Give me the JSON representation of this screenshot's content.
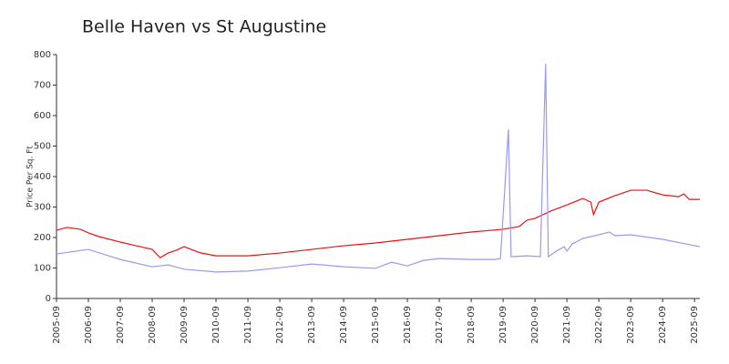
{
  "chart_data": {
    "type": "line",
    "title": "Belle Haven vs St Augustine",
    "y_label": "Price Per Sq. Ft",
    "xlim": [
      "2005-09",
      "2025-11"
    ],
    "xticks": [
      "2005-09",
      "2006-09",
      "2007-09",
      "2008-09",
      "2009-09",
      "2010-09",
      "2011-09",
      "2012-09",
      "2013-09",
      "2014-09",
      "2015-09",
      "2016-09",
      "2017-09",
      "2018-09",
      "2019-09",
      "2020-09",
      "2021-09",
      "2022-09",
      "2023-09",
      "2024-09",
      "2025-09"
    ],
    "ylim": [
      0,
      800
    ],
    "yticks": [
      0,
      100,
      200,
      300,
      400,
      500,
      600,
      700,
      800
    ],
    "grid": false,
    "series": [
      {
        "color": "#ee1111",
        "x": [
          "2005-09",
          "2006-01",
          "2006-06",
          "2006-09",
          "2007-01",
          "2007-09",
          "2008-03",
          "2008-09",
          "2008-12",
          "2009-03",
          "2009-06",
          "2009-09",
          "2010-03",
          "2010-09",
          "2011-09",
          "2012-09",
          "2013-09",
          "2014-09",
          "2015-09",
          "2016-09",
          "2017-09",
          "2018-09",
          "2019-09",
          "2020-03",
          "2020-06",
          "2020-09",
          "2021-03",
          "2021-09",
          "2022-03",
          "2022-06",
          "2022-07",
          "2022-09",
          "2023-03",
          "2023-09",
          "2024-03",
          "2024-09",
          "2025-03",
          "2025-05",
          "2025-07",
          "2025-11"
        ],
        "values": [
          224,
          233,
          227,
          215,
          203,
          185,
          173,
          161,
          134,
          149,
          158,
          170,
          150,
          140,
          140,
          149,
          161,
          173,
          182,
          194,
          206,
          218,
          227,
          236,
          257,
          263,
          287,
          307,
          328,
          316,
          275,
          316,
          337,
          355,
          355,
          340,
          334,
          343,
          325,
          325
        ]
      },
      {
        "color": "#9999ee",
        "x": [
          "2005-09",
          "2006-09",
          "2007-09",
          "2008-09",
          "2009-03",
          "2009-09",
          "2010-09",
          "2011-09",
          "2012-09",
          "2013-09",
          "2014-09",
          "2015-09",
          "2016-03",
          "2016-09",
          "2017-03",
          "2017-09",
          "2018-09",
          "2019-06",
          "2019-08",
          "2019-11",
          "2019-12",
          "2020-06",
          "2020-11",
          "2021-01",
          "2021-02",
          "2021-05",
          "2021-08",
          "2021-09",
          "2021-11",
          "2022-03",
          "2022-09",
          "2023-01",
          "2023-03",
          "2023-09",
          "2024-09",
          "2025-11"
        ],
        "values": [
          146,
          161,
          128,
          104,
          110,
          96,
          87,
          90,
          101,
          113,
          104,
          99,
          119,
          107,
          125,
          131,
          128,
          128,
          131,
          555,
          137,
          140,
          137,
          770,
          137,
          155,
          170,
          155,
          179,
          197,
          209,
          218,
          206,
          209,
          194,
          170
        ]
      }
    ]
  }
}
